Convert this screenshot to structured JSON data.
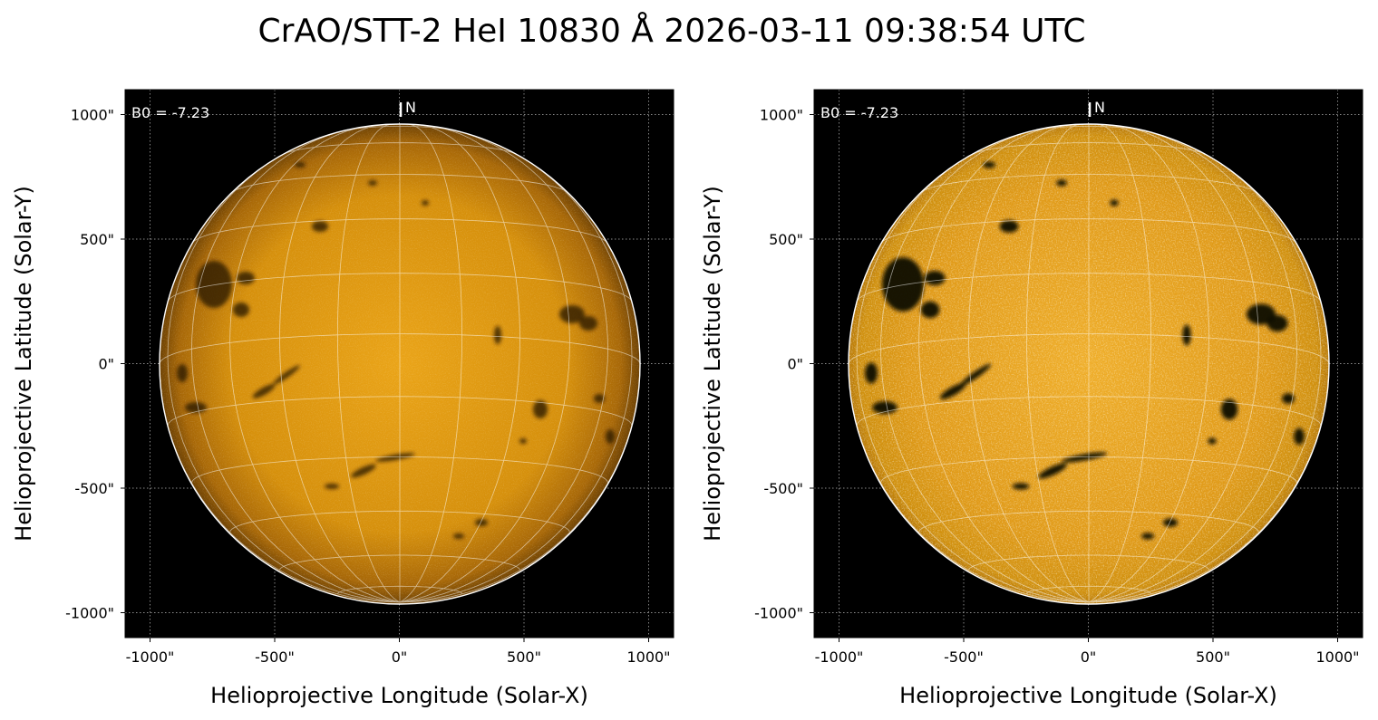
{
  "title": "CrAO/STT-2 HeI 10830 Å 2026-03-11 09:38:54 UTC",
  "colors": {
    "disk_center": "#e9a316",
    "disk_mid": "#d38e0a",
    "disk_limb": "#7a4a05",
    "background": "#000000",
    "grid": "#ffffff"
  },
  "panels": [
    {
      "id": "panel-left",
      "variant": "standard",
      "xlabel": "Helioprojective Longitude (Solar-X)",
      "ylabel": "Helioprojective Latitude (Solar-Y)",
      "b0_label": "B0 = -7.23",
      "north_label": "N",
      "x_ticks": [
        "-1000\"",
        "-500\"",
        "0\"",
        "500\"",
        "1000\""
      ],
      "y_ticks": [
        "1000\"",
        "500\"",
        "0\"",
        "-500\"",
        "-1000\""
      ]
    },
    {
      "id": "panel-right",
      "variant": "enhanced",
      "xlabel": "Helioprojective Longitude (Solar-X)",
      "ylabel": "Helioprojective Latitude (Solar-Y)",
      "b0_label": "B0 = -7.23",
      "north_label": "N",
      "x_ticks": [
        "-1000\"",
        "-500\"",
        "0\"",
        "500\"",
        "1000\""
      ],
      "y_ticks": [
        "1000\"",
        "500\"",
        "0\"",
        "-500\"",
        "-1000\""
      ]
    }
  ],
  "x_tick_values": [
    -1000,
    -500,
    0,
    500,
    1000
  ],
  "y_tick_values": [
    1000,
    500,
    0,
    -500,
    -1000
  ],
  "axis_range": [
    -1100,
    1100
  ],
  "solar_radius_arcsec": 965,
  "b0_deg": -7.23
}
